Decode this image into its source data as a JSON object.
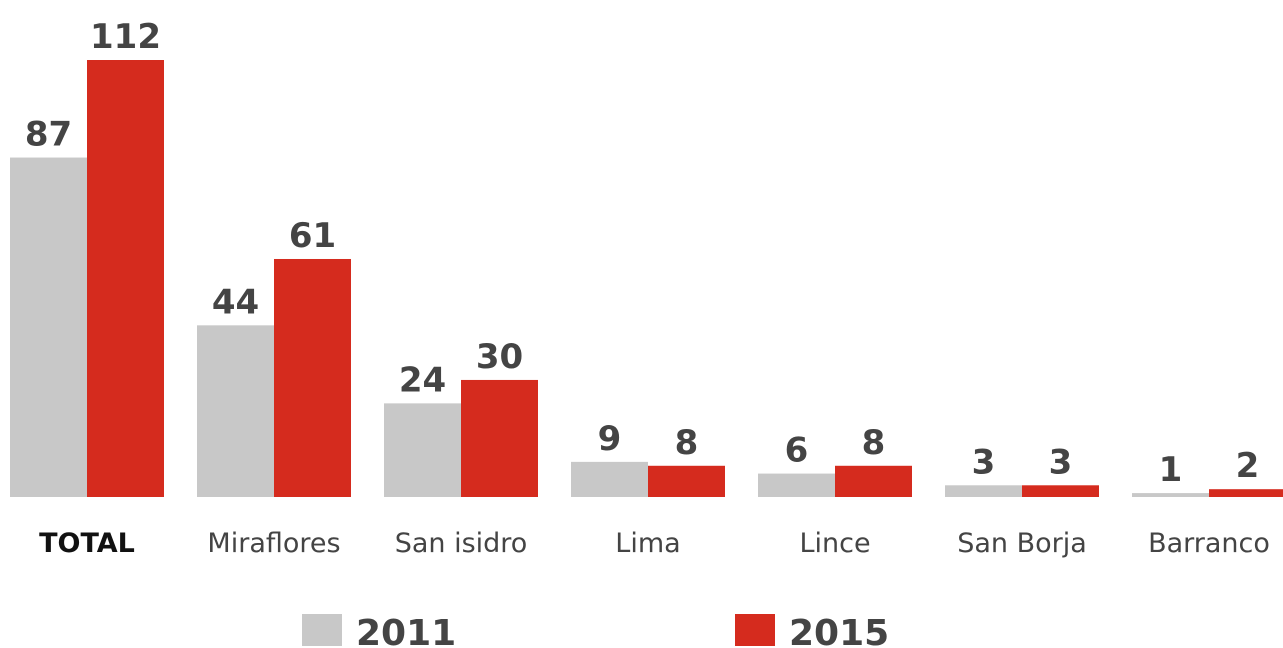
{
  "chart_data": {
    "type": "bar",
    "categories": [
      "TOTAL",
      "Miraflores",
      "San isidro",
      "Lima",
      "Lince",
      "San Borja",
      "Barranco"
    ],
    "series": [
      {
        "name": "2011",
        "color": "#c8c8c8",
        "values": [
          87,
          44,
          24,
          9,
          6,
          3,
          1
        ]
      },
      {
        "name": "2015",
        "color": "#d52b1e",
        "values": [
          112,
          61,
          30,
          8,
          8,
          3,
          2
        ]
      }
    ],
    "grid": false
  }
}
